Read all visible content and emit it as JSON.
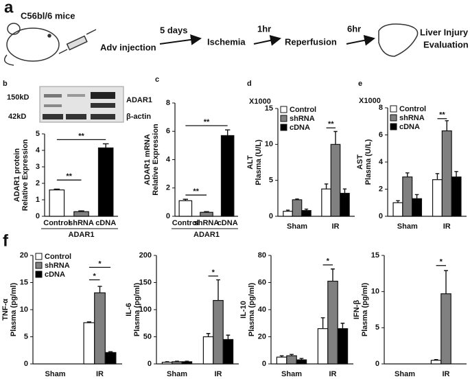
{
  "panel_a": {
    "label": "a",
    "mouse": "C56bl/6 mice",
    "step1": "Adv injection",
    "t1": "5 days",
    "step2": "Ischemia",
    "t2": "1hr",
    "step3": "Reperfusion",
    "t3": "6hr",
    "result": [
      "Liver Injury",
      "Evaluation"
    ]
  },
  "blot": {
    "markers": [
      "150kD",
      "42kD"
    ],
    "bands": [
      "ADAR1",
      "β-actin"
    ]
  },
  "panel_f_label": "f",
  "chart_data": [
    {
      "type": "bar",
      "label": "b",
      "ylabel": [
        "ADAR1 protein",
        "Relative Expression"
      ],
      "categories": [
        "Control",
        "shRNA",
        "cDNA"
      ],
      "values": [
        1.6,
        0.28,
        4.15
      ],
      "errors": [
        0.05,
        0.05,
        0.25
      ],
      "colors": [
        "#ffffff",
        "#808080",
        "#000000"
      ],
      "group_label": "ADAR1",
      "annotations": [
        "**",
        "**"
      ],
      "ylim": [
        0,
        5
      ],
      "yticks": [
        0,
        1,
        2,
        3,
        4,
        5
      ]
    },
    {
      "type": "bar",
      "label": "c",
      "ylabel": [
        "ADAR1 mRNA",
        "Relative Expression"
      ],
      "categories": [
        "Control",
        "shRNA",
        "cDNA"
      ],
      "values": [
        1.1,
        0.28,
        5.7
      ],
      "errors": [
        0.1,
        0.05,
        0.4
      ],
      "colors": [
        "#ffffff",
        "#808080",
        "#000000"
      ],
      "group_label": "ADAR1",
      "annotations": [
        "**",
        "**"
      ],
      "ylim": [
        0,
        8
      ],
      "yticks": [
        0,
        2,
        4,
        6,
        8
      ]
    },
    {
      "type": "bar",
      "label": "d",
      "y_multiplier": "X1000",
      "ylabel": [
        "ALT",
        "Plasma (U/L)"
      ],
      "categories": [
        "Sham",
        "IR"
      ],
      "series": [
        {
          "name": "Control",
          "color": "#ffffff",
          "values": [
            0.7,
            3.8
          ],
          "errors": [
            0.15,
            0.7
          ]
        },
        {
          "name": "shRNA",
          "color": "#808080",
          "values": [
            2.3,
            10.0
          ],
          "errors": [
            0.1,
            1.8
          ]
        },
        {
          "name": "cDNA",
          "color": "#000000",
          "values": [
            0.8,
            3.2
          ],
          "errors": [
            0.2,
            0.6
          ]
        }
      ],
      "legend": true,
      "annotations": [
        "**"
      ],
      "ylim": [
        0,
        15
      ],
      "yticks": [
        0,
        5,
        10,
        15
      ]
    },
    {
      "type": "bar",
      "label": "e",
      "y_multiplier": "X1000",
      "ylabel": [
        "AST",
        "Plasma (U/L)"
      ],
      "categories": [
        "Sham",
        "IR"
      ],
      "series": [
        {
          "name": "Control",
          "color": "#ffffff",
          "values": [
            1.0,
            2.7
          ],
          "errors": [
            0.15,
            0.45
          ]
        },
        {
          "name": "shRNA",
          "color": "#808080",
          "values": [
            2.9,
            6.3
          ],
          "errors": [
            0.3,
            0.75
          ]
        },
        {
          "name": "cDNA",
          "color": "#000000",
          "values": [
            1.3,
            2.9
          ],
          "errors": [
            0.3,
            0.4
          ]
        }
      ],
      "legend": true,
      "annotations": [
        "**"
      ],
      "ylim": [
        0,
        8
      ],
      "yticks": [
        0,
        2,
        4,
        6,
        8
      ]
    },
    {
      "type": "bar",
      "ylabel": [
        "TNF-α",
        "Plasma (pg/ml)"
      ],
      "categories": [
        "Sham",
        "IR"
      ],
      "series": [
        {
          "name": "Control",
          "color": "#ffffff",
          "values": [
            null,
            7.6
          ],
          "errors": [
            null,
            0.15
          ]
        },
        {
          "name": "shRNA",
          "color": "#808080",
          "values": [
            null,
            13.1
          ],
          "errors": [
            null,
            1.2
          ]
        },
        {
          "name": "cDNA",
          "color": "#000000",
          "values": [
            null,
            2.1
          ],
          "errors": [
            null,
            0.15
          ]
        }
      ],
      "legend": true,
      "annotations": [
        "*",
        "*"
      ],
      "ylim": [
        0,
        20
      ],
      "yticks": [
        0,
        5,
        10,
        15,
        20
      ]
    },
    {
      "type": "bar",
      "ylabel": [
        "IL-6",
        "Plasma (pg/ml)"
      ],
      "categories": [
        "Sham",
        "IR"
      ],
      "series": [
        {
          "color": "#ffffff",
          "values": [
            3,
            50
          ],
          "errors": [
            1,
            6
          ]
        },
        {
          "color": "#808080",
          "values": [
            4,
            117
          ],
          "errors": [
            1,
            38
          ]
        },
        {
          "color": "#000000",
          "values": [
            4,
            45
          ],
          "errors": [
            1,
            8
          ]
        }
      ],
      "legend": false,
      "annotations": [
        "*"
      ],
      "ylim": [
        0,
        200
      ],
      "yticks": [
        0,
        50,
        100,
        150,
        200
      ]
    },
    {
      "type": "bar",
      "ylabel": [
        "IL-10",
        "Plasma (pg/ml)"
      ],
      "categories": [
        "Sham",
        "IR"
      ],
      "series": [
        {
          "color": "#ffffff",
          "values": [
            5,
            26
          ],
          "errors": [
            1,
            8
          ]
        },
        {
          "color": "#808080",
          "values": [
            6,
            61
          ],
          "errors": [
            1,
            9
          ]
        },
        {
          "color": "#000000",
          "values": [
            3,
            26
          ],
          "errors": [
            1,
            4
          ]
        }
      ],
      "legend": false,
      "annotations": [
        "*"
      ],
      "ylim": [
        0,
        80
      ],
      "yticks": [
        0,
        20,
        40,
        60,
        80
      ]
    },
    {
      "type": "bar",
      "ylabel": [
        "IFN-β",
        "Plasma (pg/ml)"
      ],
      "categories": [
        "Sham",
        "IR"
      ],
      "series": [
        {
          "color": "#ffffff",
          "values": [
            null,
            0.5
          ],
          "errors": [
            null,
            0.1
          ]
        },
        {
          "color": "#808080",
          "values": [
            null,
            9.7
          ],
          "errors": [
            null,
            3.2
          ]
        },
        {
          "color": "#000000",
          "values": [
            null,
            null
          ],
          "errors": [
            null,
            null
          ]
        }
      ],
      "legend": false,
      "annotations": [
        "*"
      ],
      "ylim": [
        0,
        15
      ],
      "yticks": [
        0,
        5,
        10,
        15
      ]
    }
  ]
}
